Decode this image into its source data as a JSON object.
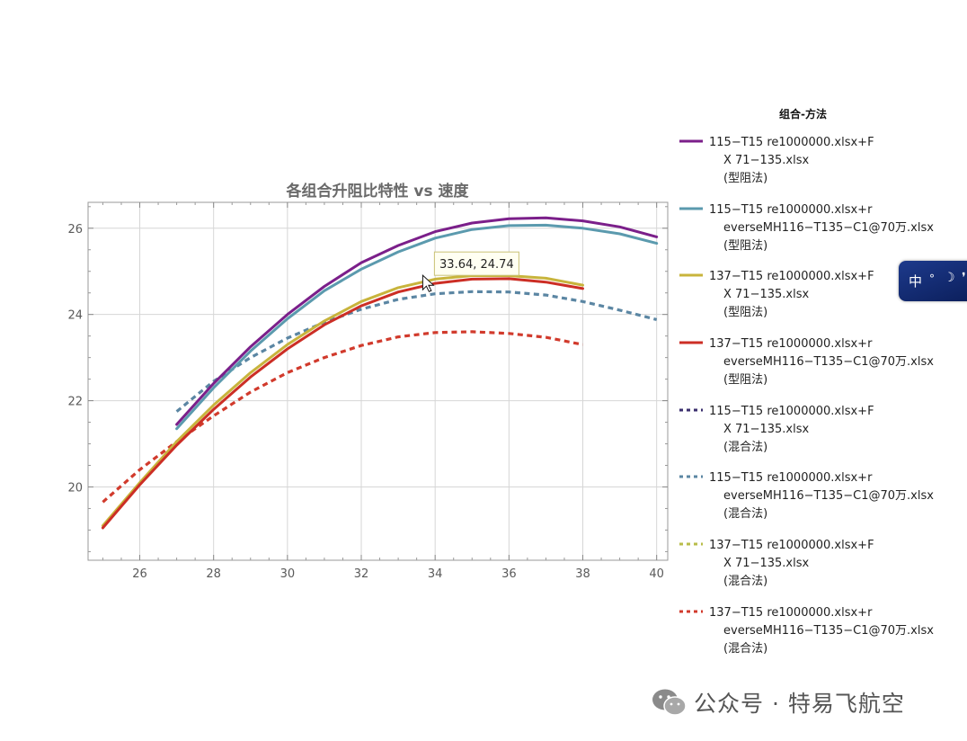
{
  "chart_data": {
    "type": "line",
    "title": "各组合升阻比特性 vs 速度",
    "xlabel": "",
    "ylabel": "",
    "xlim": [
      24.6,
      40.3
    ],
    "ylim": [
      18.3,
      26.6
    ],
    "xticks": [
      26,
      28,
      30,
      32,
      34,
      36,
      38,
      40
    ],
    "yticks": [
      20,
      22,
      24,
      26
    ],
    "grid": true,
    "legend_title": "组合-方法",
    "legend_position": "right",
    "series": [
      {
        "name": "115−T15 re1000000.xlsx+FX 71−135.xlsx(型阻法)",
        "legend_lines": [
          "115−T15 re1000000.xlsx+F",
          "X 71−135.xlsx",
          "(型阻法)"
        ],
        "color": "#7b1f8a",
        "dash": "solid",
        "x": [
          27,
          28,
          29,
          30,
          31,
          32,
          33,
          34,
          35,
          36,
          37,
          38,
          39,
          40
        ],
        "y": [
          21.45,
          22.4,
          23.25,
          24.0,
          24.65,
          25.2,
          25.6,
          25.92,
          26.12,
          26.22,
          26.24,
          26.17,
          26.03,
          25.8
        ]
      },
      {
        "name": "115−T15 re1000000.xlsx+reverseMH116−T135−C1@70万.xlsx(型阻法)",
        "legend_lines": [
          "115−T15 re1000000.xlsx+r",
          "everseMH116−T135−C1@70万.xlsx",
          "(型阻法)"
        ],
        "color": "#5b9aae",
        "dash": "solid",
        "x": [
          27,
          28,
          29,
          30,
          31,
          32,
          33,
          34,
          35,
          36,
          37,
          38,
          39,
          40
        ],
        "y": [
          21.35,
          22.3,
          23.15,
          23.9,
          24.55,
          25.05,
          25.45,
          25.77,
          25.97,
          26.06,
          26.07,
          26.0,
          25.87,
          25.65
        ]
      },
      {
        "name": "137−T15 re1000000.xlsx+FX 71−135.xlsx(型阻法)",
        "legend_lines": [
          "137−T15 re1000000.xlsx+F",
          "X 71−135.xlsx",
          "(型阻法)"
        ],
        "color": "#c8b43c",
        "dash": "solid",
        "x": [
          25,
          26,
          27,
          28,
          29,
          30,
          31,
          32,
          33,
          34,
          35,
          36,
          37,
          38
        ],
        "y": [
          19.1,
          20.1,
          21.05,
          21.9,
          22.65,
          23.3,
          23.85,
          24.3,
          24.62,
          24.82,
          24.9,
          24.9,
          24.84,
          24.68
        ]
      },
      {
        "name": "137−T15 re1000000.xlsx+reverseMH116−T135−C1@70万.xlsx(型阻法)",
        "legend_lines": [
          "137−T15 re1000000.xlsx+r",
          "everseMH116−T135−C1@70万.xlsx",
          "(型阻法)"
        ],
        "color": "#cc2e25",
        "dash": "solid",
        "x": [
          25,
          26,
          27,
          28,
          29,
          30,
          31,
          32,
          33,
          34,
          35,
          36,
          37,
          38
        ],
        "y": [
          19.05,
          20.05,
          20.97,
          21.8,
          22.55,
          23.2,
          23.76,
          24.2,
          24.52,
          24.72,
          24.82,
          24.83,
          24.75,
          24.6
        ]
      },
      {
        "name": "115−T15 re1000000.xlsx+FX 71−135.xlsx(混合法)",
        "legend_lines": [
          "115−T15 re1000000.xlsx+F",
          "X 71−135.xlsx",
          "(混合法)"
        ],
        "color": "#3b2f6e",
        "dash": "dash",
        "x": [],
        "y": []
      },
      {
        "name": "115−T15 re1000000.xlsx+reverseMH116−T135−C1@70万.xlsx(混合法)",
        "legend_lines": [
          "115−T15 re1000000.xlsx+r",
          "everseMH116−T135−C1@70万.xlsx",
          "(混合法)"
        ],
        "color": "#5b86a3",
        "dash": "dash",
        "x": [
          27,
          28,
          29,
          30,
          31,
          32,
          33,
          34,
          35,
          36,
          37,
          38,
          39,
          40
        ],
        "y": [
          21.75,
          22.45,
          23.0,
          23.45,
          23.82,
          24.12,
          24.35,
          24.48,
          24.53,
          24.52,
          24.45,
          24.3,
          24.1,
          23.88
        ]
      },
      {
        "name": "137−T15 re1000000.xlsx+FX 71−135.xlsx(混合法)",
        "legend_lines": [
          "137−T15 re1000000.xlsx+F",
          "X 71−135.xlsx",
          "(混合法)"
        ],
        "color": "#b9bd4a",
        "dash": "dash",
        "x": [],
        "y": []
      },
      {
        "name": "137−T15 re1000000.xlsx+reverseMH116−T135−C1@70万.xlsx(混合法)",
        "legend_lines": [
          "137−T15 re1000000.xlsx+r",
          "everseMH116−T135−C1@70万.xlsx",
          "(混合法)"
        ],
        "color": "#d13a2c",
        "dash": "dash",
        "x": [
          25,
          26,
          27,
          28,
          29,
          30,
          31,
          32,
          33,
          34,
          35,
          36,
          37,
          38
        ],
        "y": [
          19.65,
          20.4,
          21.05,
          21.65,
          22.2,
          22.65,
          23.0,
          23.28,
          23.48,
          23.58,
          23.6,
          23.56,
          23.47,
          23.3
        ]
      }
    ],
    "annotations": [
      {
        "text": "33.64, 24.74",
        "x": 33.64,
        "y": 24.74
      }
    ]
  },
  "ime": {
    "char": "中",
    "dot": "°",
    "moon": "☽",
    "extra": "❜"
  },
  "watermark": {
    "text": "公众号 · 特易飞航空"
  }
}
